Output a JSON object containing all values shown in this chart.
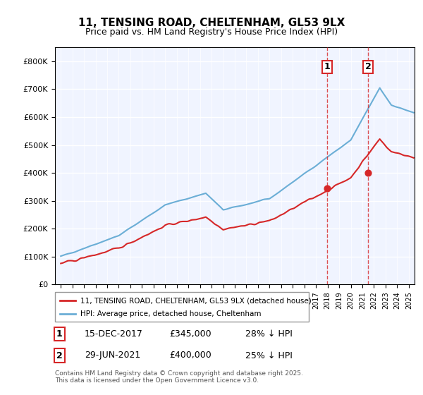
{
  "title1": "11, TENSING ROAD, CHELTENHAM, GL53 9LX",
  "title2": "Price paid vs. HM Land Registry's House Price Index (HPI)",
  "legend1": "11, TENSING ROAD, CHELTENHAM, GL53 9LX (detached house)",
  "legend2": "HPI: Average price, detached house, Cheltenham",
  "annotation1_label": "1",
  "annotation1_date": "15-DEC-2017",
  "annotation1_price": "£345,000",
  "annotation1_hpi": "28% ↓ HPI",
  "annotation1_year": 2017.96,
  "annotation2_label": "2",
  "annotation2_date": "29-JUN-2021",
  "annotation2_price": "£400,000",
  "annotation2_hpi": "25% ↓ HPI",
  "annotation2_year": 2021.5,
  "footnote": "Contains HM Land Registry data © Crown copyright and database right 2025.\nThis data is licensed under the Open Government Licence v3.0.",
  "hpi_color": "#6baed6",
  "price_color": "#d62728",
  "annotation_color": "#d62728",
  "vline_color": "#d62728",
  "background_chart": "#f0f4ff",
  "ylim": [
    0,
    850000
  ],
  "yticks": [
    0,
    100000,
    200000,
    300000,
    400000,
    500000,
    600000,
    700000,
    800000
  ]
}
